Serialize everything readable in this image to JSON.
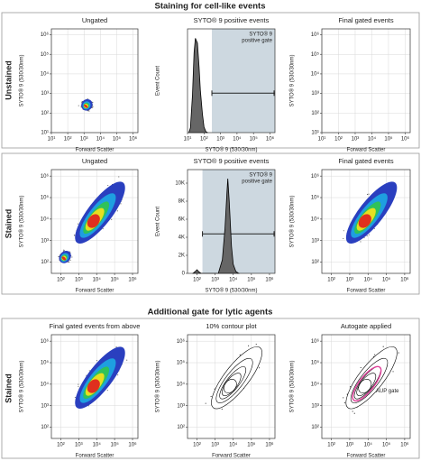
{
  "sections": [
    {
      "title": "Staining for cell-like events",
      "rows": [
        {
          "label": "Unstained",
          "panels": [
            {
              "type": "scatter",
              "style": "density",
              "title": "Ungated",
              "xlabel": "Forward Scatter",
              "ylabel": "SYTO® 9 (530/30nm)",
              "xlim": [
                10,
                2000000
              ],
              "ylim": [
                10,
                2000000
              ],
              "xticks": [
                {
                  "value": 10,
                  "label": "10¹"
                },
                {
                  "value": 100,
                  "label": "10²"
                },
                {
                  "value": 1000,
                  "label": "10³"
                },
                {
                  "value": 10000,
                  "label": "10⁴"
                },
                {
                  "value": 100000,
                  "label": "10⁵"
                },
                {
                  "value": 1000000,
                  "label": "10⁶"
                }
              ],
              "yticks": [
                {
                  "value": 10,
                  "label": "10¹"
                },
                {
                  "value": 100,
                  "label": "10²"
                },
                {
                  "value": 1000,
                  "label": "10³"
                },
                {
                  "value": 10000,
                  "label": "10⁴"
                },
                {
                  "value": 100000,
                  "label": "10⁵"
                },
                {
                  "value": 1000000,
                  "label": "10⁶"
                }
              ],
              "grid": true,
              "populations": [
                {
                  "x": [
                    900,
                    2500
                  ],
                  "y": [
                    150,
                    450
                  ]
                }
              ]
            },
            {
              "type": "histogram",
              "title": "SYTO® 9 positive events",
              "xlabel": "SYTO® 9 (530/30nm)",
              "ylabel": "Event Count",
              "xlim": [
                10,
                2000000
              ],
              "ylim": [
                0,
                110
              ],
              "xticks": [
                {
                  "value": 10,
                  "label": "10¹"
                },
                {
                  "value": 100,
                  "label": "10²"
                },
                {
                  "value": 1000,
                  "label": "10³"
                },
                {
                  "value": 10000,
                  "label": "10⁴"
                },
                {
                  "value": 100000,
                  "label": "10⁵"
                },
                {
                  "value": 1000000,
                  "label": "10⁶"
                }
              ],
              "x": [
                12,
                15,
                20,
                25,
                30,
                40,
                50,
                60,
                80,
                100,
                130,
                170
              ],
              "values": [
                0,
                5,
                40,
                85,
                100,
                95,
                70,
                45,
                20,
                6,
                1,
                0
              ],
              "gate": {
                "label": [
                  "SYTO® 9",
                  "positive gate"
                ],
                "range": [
                  300,
                  1000000
                ]
              }
            },
            {
              "type": "scatter",
              "style": "density",
              "title": "Final gated events",
              "xlabel": "Forward Scatter",
              "ylabel": "SYTO® 9 (530/30nm)",
              "xlim": [
                10,
                2000000
              ],
              "ylim": [
                10,
                2000000
              ],
              "xticks": [
                {
                  "value": 10,
                  "label": "10¹"
                },
                {
                  "value": 100,
                  "label": "10²"
                },
                {
                  "value": 1000,
                  "label": "10³"
                },
                {
                  "value": 10000,
                  "label": "10⁴"
                },
                {
                  "value": 100000,
                  "label": "10⁵"
                },
                {
                  "value": 1000000,
                  "label": "10⁶"
                }
              ],
              "yticks": [
                {
                  "value": 10,
                  "label": "10¹"
                },
                {
                  "value": 100,
                  "label": "10²"
                },
                {
                  "value": 1000,
                  "label": "10³"
                },
                {
                  "value": 10000,
                  "label": "10⁴"
                },
                {
                  "value": 100000,
                  "label": "10⁵"
                },
                {
                  "value": 1000000,
                  "label": "10⁶"
                }
              ],
              "grid": true,
              "populations": []
            }
          ]
        },
        {
          "label": "Stained",
          "panels": [
            {
              "type": "scatter",
              "style": "density",
              "title": "Ungated",
              "xlabel": "Forward Scatter",
              "ylabel": "SYTO® 9 (530/30nm)",
              "xlim": [
                30,
                2000000
              ],
              "ylim": [
                30,
                2000000
              ],
              "xticks": [
                {
                  "value": 100,
                  "label": "10²"
                },
                {
                  "value": 1000,
                  "label": "10³"
                },
                {
                  "value": 10000,
                  "label": "10⁴"
                },
                {
                  "value": 100000,
                  "label": "10⁵"
                },
                {
                  "value": 1000000,
                  "label": "10⁶"
                }
              ],
              "yticks": [
                {
                  "value": 100,
                  "label": "10²"
                },
                {
                  "value": 1000,
                  "label": "10³"
                },
                {
                  "value": 10000,
                  "label": "10⁴"
                },
                {
                  "value": 100000,
                  "label": "10⁵"
                },
                {
                  "value": 1000000,
                  "label": "10⁶"
                }
              ],
              "grid": true,
              "populations": [
                {
                  "x": [
                    800,
                    300000
                  ],
                  "y": [
                    800,
                    500000
                  ]
                },
                {
                  "x": [
                    100,
                    300
                  ],
                  "y": [
                    100,
                    300
                  ]
                }
              ]
            },
            {
              "type": "histogram",
              "title": "SYTO® 9 positive events",
              "xlabel": "SYTO® 9 (530/30nm)",
              "ylabel": "Event Count",
              "xlim": [
                30,
                2000000
              ],
              "ylim": [
                0,
                11500
              ],
              "xticks": [
                {
                  "value": 100,
                  "label": "10²"
                },
                {
                  "value": 1000,
                  "label": "10³"
                },
                {
                  "value": 10000,
                  "label": "10⁴"
                },
                {
                  "value": 100000,
                  "label": "10⁵"
                },
                {
                  "value": 1000000,
                  "label": "10⁶"
                }
              ],
              "yticks": [
                0,
                {
                  "value": 2000,
                  "label": "2K"
                },
                {
                  "value": 4000,
                  "label": "4K"
                },
                {
                  "value": 6000,
                  "label": "6K"
                },
                {
                  "value": 8000,
                  "label": "8K"
                },
                {
                  "value": 10000,
                  "label": "10K"
                }
              ],
              "x": [
                60,
                80,
                100,
                130,
                170,
                1500,
                2500,
                3500,
                4500,
                5000,
                6000,
                8000,
                10000,
                14000,
                20000
              ],
              "values": [
                0,
                200,
                400,
                150,
                0,
                0,
                1500,
                5000,
                9000,
                10500,
                8000,
                3000,
                1000,
                200,
                0
              ],
              "gate": {
                "label": [
                  "SYTO® 9",
                  "positive gate"
                ],
                "range": [
                  200,
                  1000000
                ]
              }
            },
            {
              "type": "scatter",
              "style": "density",
              "title": "Final gated events",
              "xlabel": "Forward Scatter",
              "ylabel": "SYTO® 9 (530/30nm)",
              "xlim": [
                30,
                2000000
              ],
              "ylim": [
                30,
                2000000
              ],
              "xticks": [
                {
                  "value": 100,
                  "label": "10²"
                },
                {
                  "value": 1000,
                  "label": "10³"
                },
                {
                  "value": 10000,
                  "label": "10⁴"
                },
                {
                  "value": 100000,
                  "label": "10⁵"
                },
                {
                  "value": 1000000,
                  "label": "10⁶"
                }
              ],
              "yticks": [
                {
                  "value": 100,
                  "label": "10²"
                },
                {
                  "value": 1000,
                  "label": "10³"
                },
                {
                  "value": 10000,
                  "label": "10⁴"
                },
                {
                  "value": 100000,
                  "label": "10⁵"
                },
                {
                  "value": 1000000,
                  "label": "10⁶"
                }
              ],
              "grid": true,
              "populations": [
                {
                  "x": [
                    800,
                    300000
                  ],
                  "y": [
                    800,
                    500000
                  ]
                }
              ]
            }
          ]
        }
      ]
    },
    {
      "title": "Additional gate for lytic agents",
      "rows": [
        {
          "label": "Stained",
          "panels": [
            {
              "type": "scatter",
              "style": "density",
              "title": "Final gated events from above",
              "xlabel": "Forward Scatter",
              "ylabel": "SYTO® 9 (530/30nm)",
              "xlim": [
                30,
                2000000
              ],
              "ylim": [
                30,
                2000000
              ],
              "xticks": [
                {
                  "value": 100,
                  "label": "10²"
                },
                {
                  "value": 1000,
                  "label": "10³"
                },
                {
                  "value": 10000,
                  "label": "10⁴"
                },
                {
                  "value": 100000,
                  "label": "10⁵"
                },
                {
                  "value": 1000000,
                  "label": "10⁶"
                }
              ],
              "yticks": [
                {
                  "value": 100,
                  "label": "10²"
                },
                {
                  "value": 1000,
                  "label": "10³"
                },
                {
                  "value": 10000,
                  "label": "10⁴"
                },
                {
                  "value": 100000,
                  "label": "10⁵"
                },
                {
                  "value": 1000000,
                  "label": "10⁶"
                }
              ],
              "grid": true,
              "populations": [
                {
                  "x": [
                    800,
                    300000
                  ],
                  "y": [
                    800,
                    500000
                  ]
                }
              ]
            },
            {
              "type": "scatter",
              "style": "contour",
              "title": "10% contour plot",
              "xlabel": "Forward Scatter",
              "ylabel": "SYTO® 9 (530/30nm)",
              "xlim": [
                30,
                2000000
              ],
              "ylim": [
                30,
                2000000
              ],
              "xticks": [
                {
                  "value": 100,
                  "label": "10²"
                },
                {
                  "value": 1000,
                  "label": "10³"
                },
                {
                  "value": 10000,
                  "label": "10⁴"
                },
                {
                  "value": 100000,
                  "label": "10⁵"
                },
                {
                  "value": 1000000,
                  "label": "10⁶"
                }
              ],
              "yticks": [
                {
                  "value": 100,
                  "label": "10²"
                },
                {
                  "value": 1000,
                  "label": "10³"
                },
                {
                  "value": 10000,
                  "label": "10⁴"
                },
                {
                  "value": 100000,
                  "label": "10⁵"
                },
                {
                  "value": 1000000,
                  "label": "10⁶"
                }
              ],
              "grid": true,
              "populations": [
                {
                  "x": [
                    800,
                    300000
                  ],
                  "y": [
                    800,
                    500000
                  ]
                }
              ]
            },
            {
              "type": "scatter",
              "style": "gate",
              "title": "Autogate applied",
              "xlabel": "Forward Scatter",
              "ylabel": "SYTO® 9 (530/30nm)",
              "xlim": [
                30,
                2000000
              ],
              "ylim": [
                30,
                2000000
              ],
              "xticks": [
                {
                  "value": 100,
                  "label": "10²"
                },
                {
                  "value": 1000,
                  "label": "10³"
                },
                {
                  "value": 10000,
                  "label": "10⁴"
                },
                {
                  "value": 100000,
                  "label": "10⁵"
                },
                {
                  "value": 1000000,
                  "label": "10⁶"
                }
              ],
              "yticks": [
                {
                  "value": 100,
                  "label": "10²"
                },
                {
                  "value": 1000,
                  "label": "10³"
                },
                {
                  "value": 10000,
                  "label": "10⁴"
                },
                {
                  "value": 100000,
                  "label": "10⁵"
                },
                {
                  "value": 1000000,
                  "label": "10⁶"
                }
              ],
              "grid": true,
              "populations": [
                {
                  "x": [
                    800,
                    300000
                  ],
                  "y": [
                    800,
                    500000
                  ]
                }
              ],
              "annotation": "AUP gate"
            }
          ]
        }
      ]
    }
  ]
}
